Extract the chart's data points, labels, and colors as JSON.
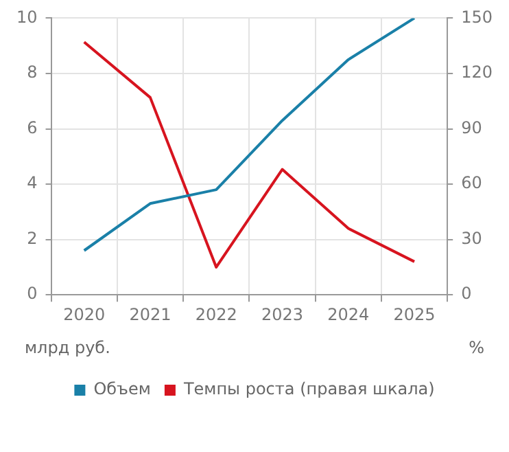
{
  "chart_data": {
    "type": "line",
    "categories": [
      "2020",
      "2021",
      "2022",
      "2023",
      "2024",
      "2025"
    ],
    "series": [
      {
        "name": "Объем",
        "color": "#1a80a8",
        "values": [
          1.6,
          3.3,
          3.8,
          6.3,
          8.5,
          10
        ]
      },
      {
        "name": "Темпы роста (правая шкала)",
        "color": "#d7141f",
        "axis": "y2",
        "values": [
          137,
          107,
          15,
          68,
          36,
          18
        ]
      }
    ],
    "ylabel": "млрд руб.",
    "y2label": "%",
    "ylim": [
      0,
      10
    ],
    "yticks": [
      0,
      2,
      4,
      6,
      8,
      10
    ],
    "y2lim": [
      0,
      150
    ],
    "y2ticks": [
      0,
      30,
      60,
      90,
      120,
      150
    ],
    "grid": true,
    "legend": "bottom",
    "marker": "none",
    "line_style": "solid"
  }
}
